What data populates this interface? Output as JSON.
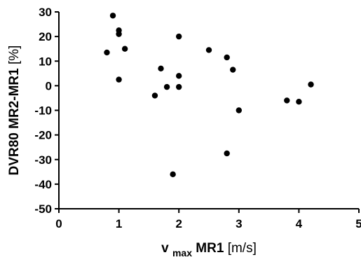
{
  "chart_data": {
    "type": "scatter",
    "xlabel": {
      "main": "v",
      "subscript": "max",
      "rest": " MR1",
      "unit": "[m/s]"
    },
    "ylabel": {
      "main": "DVR80 MR2-MR1",
      "unit": "[%]"
    },
    "xlim": [
      0,
      5
    ],
    "ylim": [
      -50,
      30
    ],
    "x_ticks": [
      0,
      1,
      2,
      3,
      4,
      5
    ],
    "y_ticks": [
      30,
      20,
      10,
      0,
      -10,
      -20,
      -30,
      -40,
      -50
    ],
    "grid": false,
    "series": [
      {
        "marker_color": "#000000",
        "points": [
          {
            "x": 0.8,
            "y": 13.5
          },
          {
            "x": 0.9,
            "y": 28.5
          },
          {
            "x": 1.0,
            "y": 22.5
          },
          {
            "x": 1.0,
            "y": 21.0
          },
          {
            "x": 1.0,
            "y": 2.5
          },
          {
            "x": 1.1,
            "y": 15.0
          },
          {
            "x": 1.6,
            "y": -4.0
          },
          {
            "x": 1.7,
            "y": 7.0
          },
          {
            "x": 1.8,
            "y": -0.5
          },
          {
            "x": 1.9,
            "y": -36.0
          },
          {
            "x": 2.0,
            "y": 20.0
          },
          {
            "x": 2.0,
            "y": 4.0
          },
          {
            "x": 2.0,
            "y": -0.5
          },
          {
            "x": 2.5,
            "y": 14.5
          },
          {
            "x": 2.8,
            "y": 11.5
          },
          {
            "x": 2.8,
            "y": -27.5
          },
          {
            "x": 2.9,
            "y": 6.5
          },
          {
            "x": 3.0,
            "y": -10.0
          },
          {
            "x": 3.8,
            "y": -6.0
          },
          {
            "x": 4.0,
            "y": -6.5
          },
          {
            "x": 4.2,
            "y": 0.5
          }
        ]
      }
    ]
  }
}
